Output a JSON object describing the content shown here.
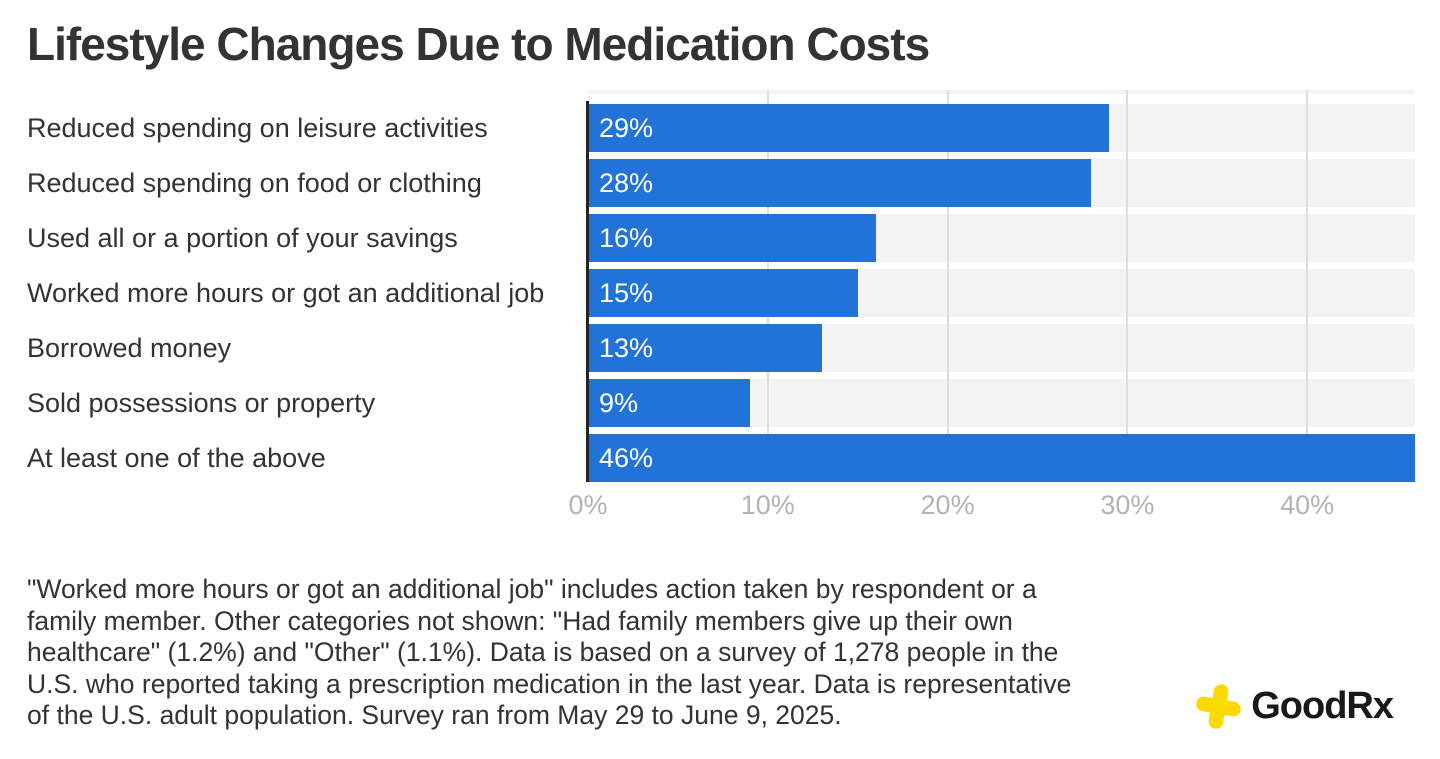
{
  "chart_data": {
    "type": "bar",
    "orientation": "horizontal",
    "title": "Lifestyle Changes Due to Medication Costs",
    "categories": [
      "Reduced spending on leisure activities",
      "Reduced spending on food or clothing",
      "Used all or a portion of your savings",
      "Worked more hours or got an additional job",
      "Borrowed money",
      "Sold possessions or property",
      "At least one of the above"
    ],
    "values": [
      29,
      28,
      16,
      15,
      13,
      9,
      46
    ],
    "value_labels": [
      "29%",
      "28%",
      "16%",
      "15%",
      "13%",
      "9%",
      "46%"
    ],
    "xlim": [
      0,
      46
    ],
    "ticks": [
      0,
      10,
      20,
      30,
      40
    ],
    "tick_labels": [
      "0%",
      "10%",
      "20%",
      "30%",
      "40%"
    ],
    "grid": "vertical gridlines on, drawn behind bars",
    "legend": "none",
    "colors": {
      "bar": "#2273d8",
      "band": "#f4f4f4",
      "gridline": "#dedede",
      "axis_line": "#242424",
      "tick_label": "#b3b3b3",
      "title": "#333333",
      "category_label": "#333333",
      "value_label": "#ffffff"
    }
  },
  "footnote": {
    "lines": [
      "\"Worked more hours or got an additional job\" includes action taken by respondent or a",
      "family member. Other categories not shown: \"Had family members give up their own",
      "healthcare\" (1.2%) and \"Other\" (1.1%). Data is based on a survey of 1,278 people in the",
      "U.S. who reported taking a prescription medication in the last year. Data is representative",
      "of the U.S. adult population. Survey ran from May 29 to June 9, 2025."
    ]
  },
  "logo": {
    "text": "GoodRx",
    "icon": "goodrx-cross-icon",
    "icon_color": "#fdd900",
    "text_color": "#19181a"
  }
}
